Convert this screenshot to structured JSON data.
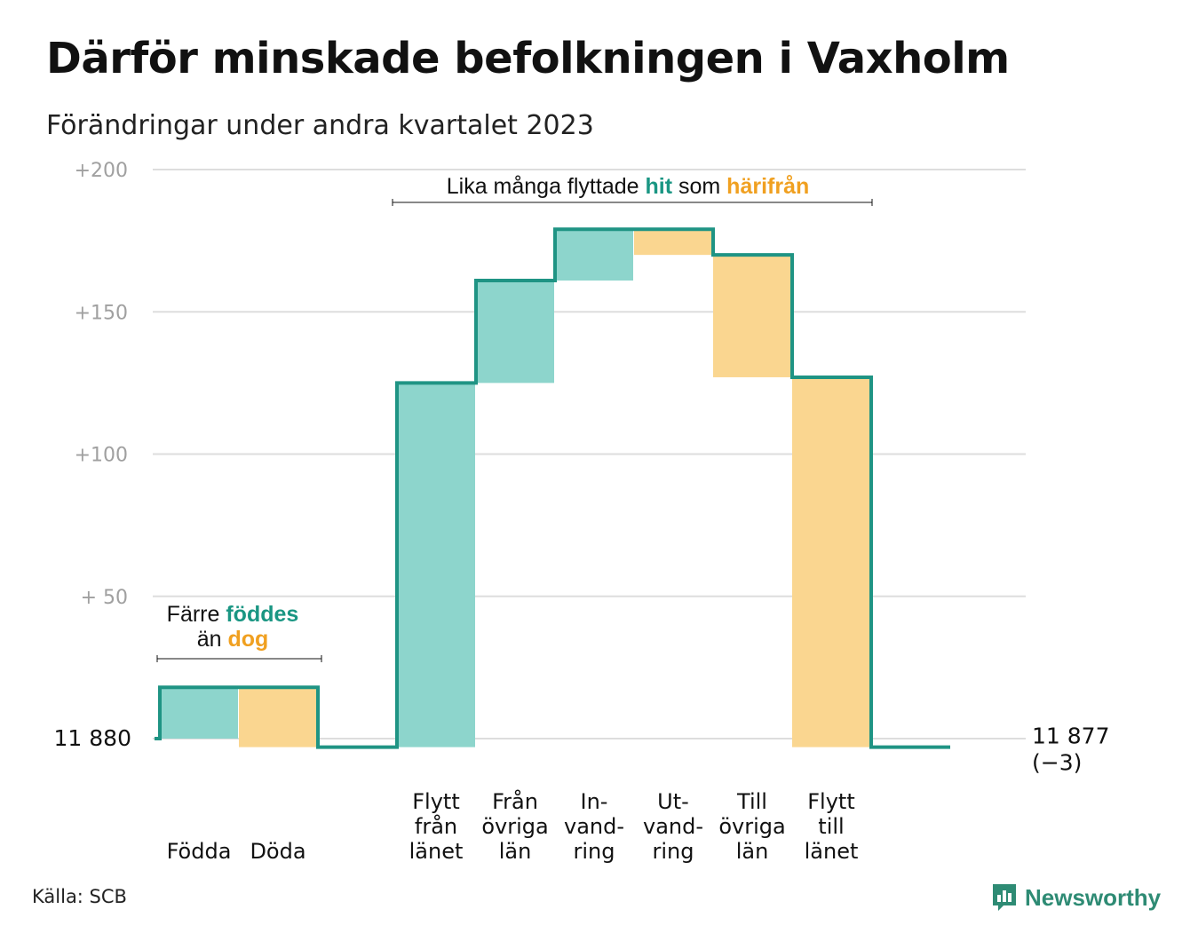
{
  "title": "Därför minskade befolkningen i Vaxholm",
  "subtitle": "Förändringar under andra kvartalet 2023",
  "source": "Källa: SCB",
  "brand": {
    "name": "Newsworthy",
    "icon": "bar-chart-speech-bubble-icon"
  },
  "colors": {
    "inflow": "#8dd5cc",
    "outflow": "#fad690",
    "line": "#1f9484",
    "teal_text": "#1a9683",
    "orange_text": "#f0a020",
    "grid": "#dddddd",
    "tick_text": "#a0a0a0"
  },
  "annotations": {
    "births": {
      "prefix": "Färre",
      "hi1": "föddes",
      "line2_prefix": "än",
      "hi2": "dog"
    },
    "migration": {
      "prefix": "Lika många flyttade",
      "hi1": "hit",
      "mid": "som",
      "hi2": "härifrån"
    }
  },
  "chart_data": {
    "type": "waterfall",
    "title": "Därför minskade befolkningen i Vaxholm",
    "subtitle": "Förändringar under andra kvartalet 2023",
    "start_label": "11  880",
    "end_label": "11 877",
    "end_change_label": "(−3)",
    "ylim": [
      0,
      200
    ],
    "yticks": [
      {
        "value": 200,
        "label": "+200"
      },
      {
        "value": 150,
        "label": "+150"
      },
      {
        "value": 100,
        "label": "+100"
      },
      {
        "value": 50,
        "label": "+  50"
      }
    ],
    "grid": true,
    "steps": [
      {
        "key": "fodda",
        "label": [
          "Födda"
        ],
        "change": 18,
        "kind": "in"
      },
      {
        "key": "doda",
        "label": [
          "Döda"
        ],
        "change": -21,
        "kind": "out"
      },
      {
        "key": "empty",
        "label": [],
        "change": 0,
        "kind": "none"
      },
      {
        "key": "flytt_fran_lanet",
        "label": [
          "Flytt",
          "från",
          "länet"
        ],
        "change": 128,
        "kind": "in"
      },
      {
        "key": "fran_ovriga_lan",
        "label": [
          "Från",
          "övriga",
          "län"
        ],
        "change": 36,
        "kind": "in"
      },
      {
        "key": "invandring",
        "label": [
          "In-",
          "vand-",
          "ring"
        ],
        "change": 18,
        "kind": "in"
      },
      {
        "key": "utvandring",
        "label": [
          "Ut-",
          "vand-",
          "ring"
        ],
        "change": -9,
        "kind": "out"
      },
      {
        "key": "till_ovriga_lan",
        "label": [
          "Till",
          "övriga",
          "län"
        ],
        "change": -43,
        "kind": "out"
      },
      {
        "key": "flytt_till_lanet",
        "label": [
          "Flytt",
          "till",
          "länet"
        ],
        "change": -130,
        "kind": "out"
      },
      {
        "key": "end",
        "label": [],
        "change": 0,
        "kind": "none"
      }
    ]
  }
}
